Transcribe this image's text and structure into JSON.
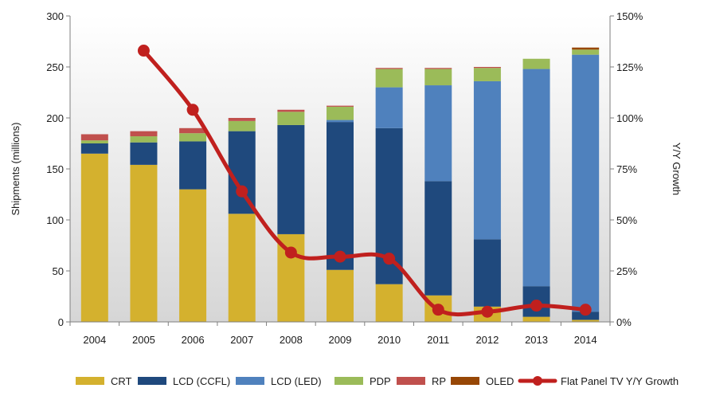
{
  "chart_data": {
    "type": "bar",
    "stacked": true,
    "categories": [
      "2004",
      "2005",
      "2006",
      "2007",
      "2008",
      "2009",
      "2010",
      "2011",
      "2012",
      "2013",
      "2014"
    ],
    "series": [
      {
        "name": "CRT",
        "color": "#D4B12E",
        "values": [
          165,
          154,
          130,
          106,
          86,
          51,
          37,
          26,
          15,
          5,
          2
        ]
      },
      {
        "name": "LCD (CCFL)",
        "color": "#1F497D",
        "values": [
          10,
          22,
          47,
          81,
          107,
          145,
          153,
          112,
          66,
          30,
          8
        ]
      },
      {
        "name": "LCD (LED)",
        "color": "#4F81BD",
        "values": [
          0,
          0,
          0,
          0,
          0,
          2,
          40,
          94,
          155,
          213,
          252
        ]
      },
      {
        "name": "PDP",
        "color": "#9BBB59",
        "values": [
          3,
          6,
          8,
          10,
          13,
          13,
          18,
          16,
          13,
          10,
          5
        ]
      },
      {
        "name": "RP",
        "color": "#C0504D",
        "values": [
          6,
          5,
          5,
          3,
          2,
          1,
          1,
          1,
          1,
          0,
          0
        ]
      },
      {
        "name": "OLED",
        "color": "#974706",
        "values": [
          0,
          0,
          0,
          0,
          0,
          0,
          0,
          0,
          0,
          0,
          2
        ]
      }
    ],
    "line_series": {
      "name": "Flat Panel TV Y/Y Growth",
      "color": "#C0201E",
      "axis": "right",
      "values": [
        null,
        133,
        104,
        64,
        34,
        32,
        31,
        6,
        5,
        8,
        6
      ]
    },
    "ylabel": "Shipments (millions)",
    "y2label": "Y/Y Growth",
    "ylim": [
      0,
      300
    ],
    "y2lim": [
      0,
      150
    ],
    "yticks": [
      "0",
      "50",
      "100",
      "150",
      "200",
      "250",
      "300"
    ],
    "y2ticks": [
      "0%",
      "25%",
      "50%",
      "75%",
      "100%",
      "125%",
      "150%"
    ],
    "grid": false,
    "legend": "bottom"
  }
}
